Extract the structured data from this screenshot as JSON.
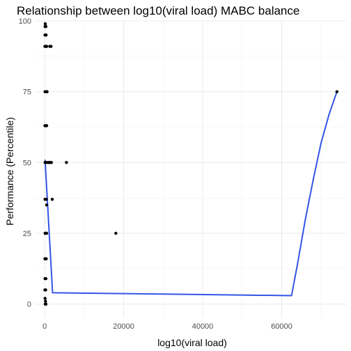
{
  "chart_data": {
    "type": "scatter",
    "title": "Relationship between log10(viral load) MABC balance",
    "xlabel": "log10(viral load)",
    "ylabel": "Performance (Percentile)",
    "xlim": [
      -2500,
      76500
    ],
    "ylim": [
      -5,
      100
    ],
    "x_ticks": [
      0,
      20000,
      40000,
      60000
    ],
    "x_tick_labels": [
      "0",
      "20000",
      "40000",
      "60000"
    ],
    "y_ticks": [
      0,
      25,
      50,
      75,
      100
    ],
    "y_tick_labels": [
      "0",
      "25",
      "50",
      "75",
      "100"
    ],
    "grid": true,
    "legend": "none",
    "point_color": "#000000",
    "line_color": "#3355e6",
    "points": [
      {
        "x": 150,
        "y": 99
      },
      {
        "x": 200,
        "y": 98
      },
      {
        "x": 100,
        "y": 98
      },
      {
        "x": 300,
        "y": 98
      },
      {
        "x": 80,
        "y": 95
      },
      {
        "x": 250,
        "y": 95
      },
      {
        "x": 350,
        "y": 95
      },
      {
        "x": 50,
        "y": 91
      },
      {
        "x": 150,
        "y": 91
      },
      {
        "x": 300,
        "y": 91
      },
      {
        "x": 500,
        "y": 91
      },
      {
        "x": 1300,
        "y": 91
      },
      {
        "x": 1600,
        "y": 91
      },
      {
        "x": 100,
        "y": 75
      },
      {
        "x": 300,
        "y": 75
      },
      {
        "x": 600,
        "y": 75
      },
      {
        "x": 50,
        "y": 63
      },
      {
        "x": 200,
        "y": 63
      },
      {
        "x": 500,
        "y": 63
      },
      {
        "x": 100,
        "y": 50
      },
      {
        "x": 300,
        "y": 50
      },
      {
        "x": 800,
        "y": 50
      },
      {
        "x": 1100,
        "y": 50
      },
      {
        "x": 1400,
        "y": 50
      },
      {
        "x": 1700,
        "y": 50
      },
      {
        "x": 5500,
        "y": 50
      },
      {
        "x": 100,
        "y": 37
      },
      {
        "x": 400,
        "y": 37
      },
      {
        "x": 1900,
        "y": 37
      },
      {
        "x": 500,
        "y": 35
      },
      {
        "x": 100,
        "y": 25
      },
      {
        "x": 300,
        "y": 25
      },
      {
        "x": 500,
        "y": 25
      },
      {
        "x": 18000,
        "y": 25
      },
      {
        "x": 50,
        "y": 16
      },
      {
        "x": 200,
        "y": 16
      },
      {
        "x": 400,
        "y": 16
      },
      {
        "x": 100,
        "y": 9
      },
      {
        "x": 300,
        "y": 9
      },
      {
        "x": 50,
        "y": 5
      },
      {
        "x": 250,
        "y": 5
      },
      {
        "x": 100,
        "y": 2
      },
      {
        "x": 200,
        "y": 1
      },
      {
        "x": 150,
        "y": 0
      },
      {
        "x": 300,
        "y": 0
      },
      {
        "x": 74000,
        "y": 75
      }
    ],
    "smooth_line": [
      {
        "x": 100,
        "y": 51
      },
      {
        "x": 2000,
        "y": 4
      },
      {
        "x": 62500,
        "y": 3
      },
      {
        "x": 64000,
        "y": 14
      },
      {
        "x": 66000,
        "y": 30
      },
      {
        "x": 68000,
        "y": 44
      },
      {
        "x": 70000,
        "y": 57
      },
      {
        "x": 72000,
        "y": 67
      },
      {
        "x": 74000,
        "y": 75
      }
    ]
  }
}
